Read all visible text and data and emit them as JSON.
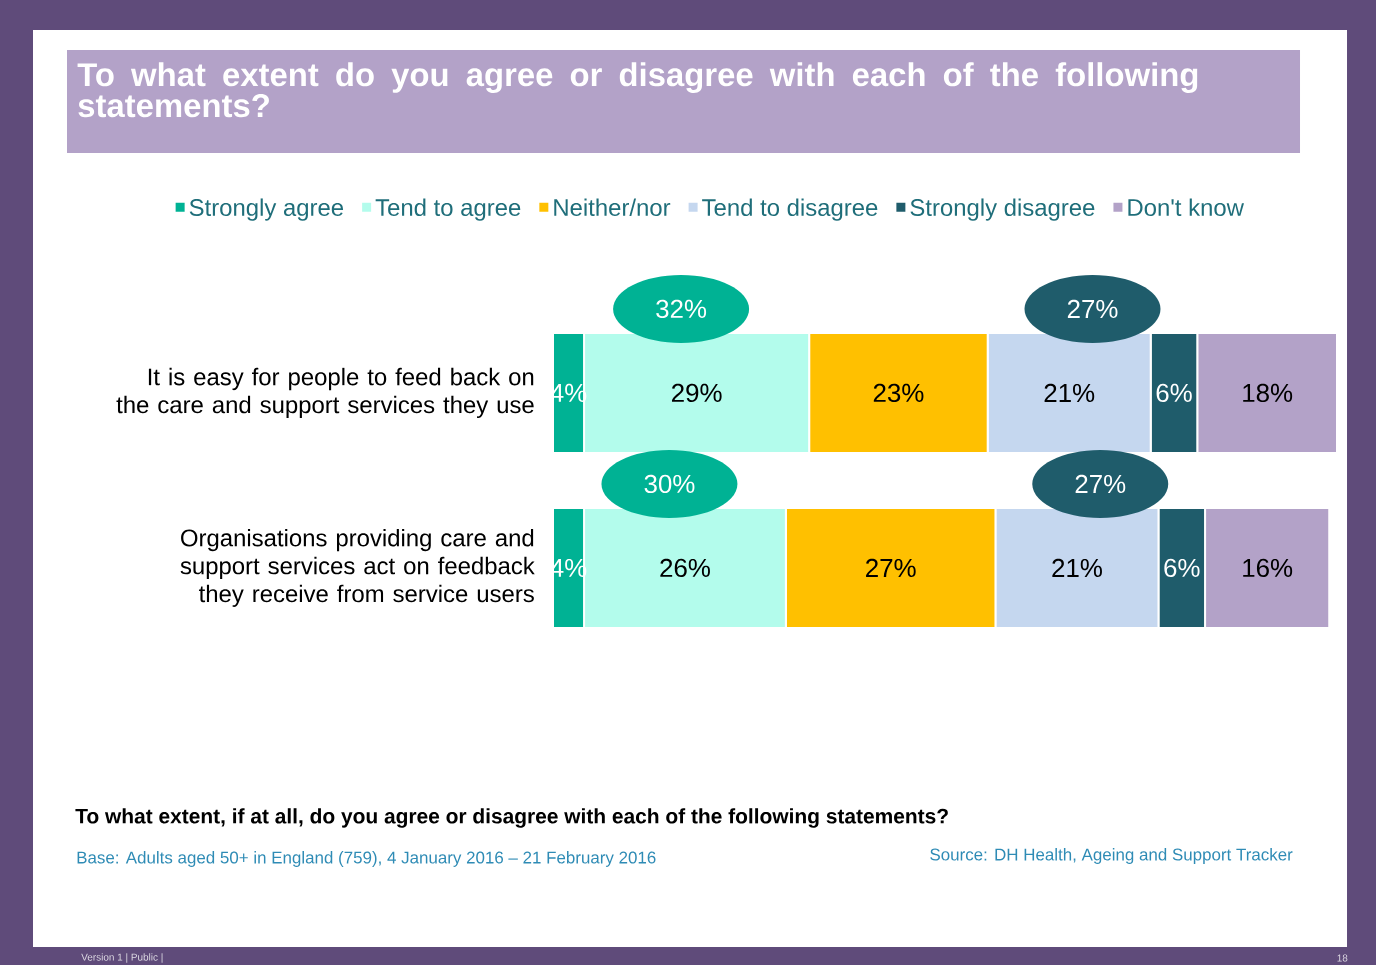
{
  "chart_data": {
    "type": "bar",
    "orientation": "horizontal",
    "stacked": true,
    "legend": "top",
    "title": "To what extent do you agree or disagree with each of the following statements?",
    "categories": [
      "It is easy for people to feed back on the care and support services they use",
      "Organisations providing care and support services  act on feedback they receive from service users"
    ],
    "series": [
      {
        "name": "Strongly agree",
        "color": "#00b294",
        "values": [
          4,
          4
        ],
        "value_labels": [
          "4%",
          "4%"
        ]
      },
      {
        "name": "Tend to agree",
        "color": "#b3fcec",
        "values": [
          29,
          26
        ],
        "value_labels": [
          "29%",
          "26%"
        ]
      },
      {
        "name": "Neither/nor",
        "color": "#ffc000",
        "values": [
          23,
          27
        ],
        "value_labels": [
          "23%",
          "27%"
        ]
      },
      {
        "name": "Tend to disagree",
        "color": "#c5d7ef",
        "values": [
          21,
          21
        ],
        "value_labels": [
          "21%",
          "21%"
        ]
      },
      {
        "name": "Strongly disagree",
        "color": "#1f5c6b",
        "values": [
          6,
          6
        ],
        "value_labels": [
          "6%",
          "6%"
        ]
      },
      {
        "name": "Don't know",
        "color": "#b3a2c8",
        "values": [
          18,
          16
        ],
        "value_labels": [
          "18%",
          "16%"
        ]
      }
    ],
    "annotations": [
      "32%",
      "27%",
      "30%",
      "27%",
      "To what extent, if at all, do you agree or disagree with each of the following statements?",
      "Base: Adults aged 50+ in England (759), 4 January 2016 – 21 February 2016",
      "Source: DH Health, Ageing and Support Tracker",
      "Version 1  | Public  |",
      "18"
    ]
  }
}
